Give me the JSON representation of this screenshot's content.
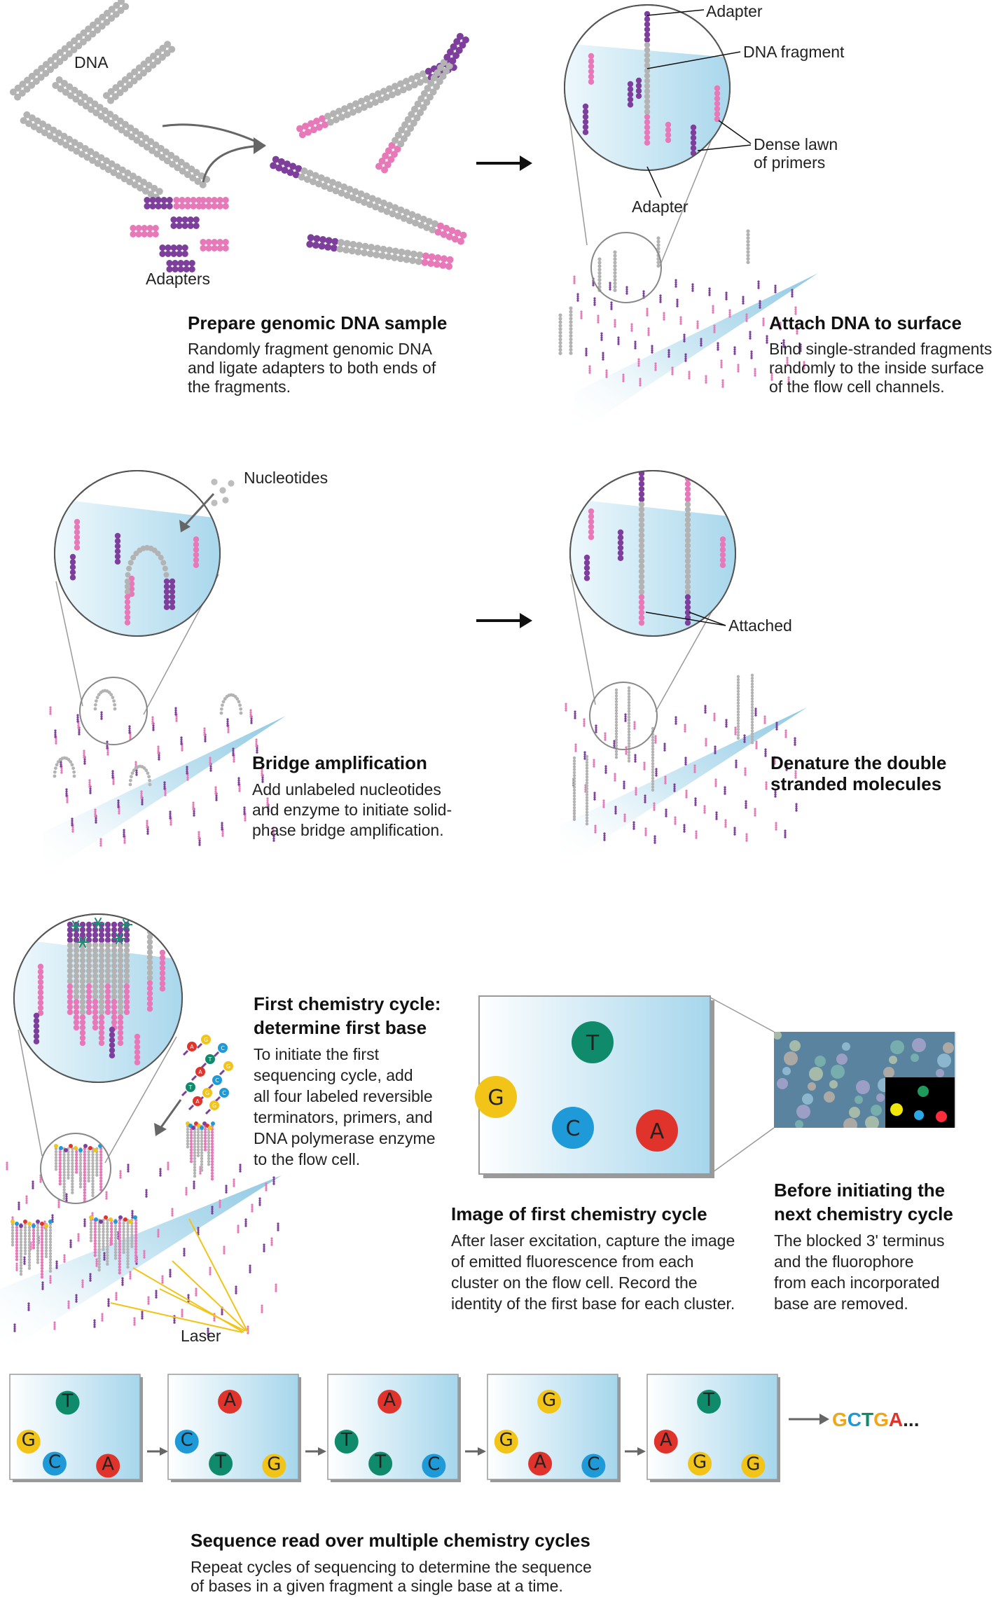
{
  "colors": {
    "gray": "#b3b3b3",
    "pink": "#e879b9",
    "purple": "#7d3f9b",
    "blue_light": "#d7eef8",
    "blue_dark": "#8fc9e3",
    "T": "#0f8a6a",
    "C": "#1f9ad8",
    "A": "#e0332b",
    "G": "#f1c417"
  },
  "step1": {
    "dna_label": "DNA",
    "adapters_label": "Adapters",
    "title": "Prepare genomic DNA sample",
    "desc": [
      "Randomly fragment genomic DNA",
      "and ligate adapters to both ends of",
      "the fragments."
    ]
  },
  "step2": {
    "labels": {
      "adapter_top": "Adapter",
      "fragment": "DNA fragment",
      "lawn_1": "Dense lawn",
      "lawn_2": "of primers",
      "adapter_bottom": "Adapter"
    },
    "title": "Attach DNA to surface",
    "desc": [
      "Bind single-stranded fragments",
      "randomly to the inside surface",
      "of the flow cell channels."
    ]
  },
  "step3": {
    "nucleotides_label": "Nucleotides",
    "title": "Bridge amplification",
    "desc": [
      "Add unlabeled nucleotides",
      "and enzyme to initiate solid-",
      "phase bridge amplification."
    ]
  },
  "step4": {
    "attached_label": "Attached",
    "title": [
      "Denature the double",
      "stranded molecules"
    ]
  },
  "step5": {
    "title": [
      "First chemistry cycle:",
      "determine first base"
    ],
    "desc": [
      "To initiate the first",
      "sequencing cycle, add",
      "all four labeled reversible",
      "terminators, primers, and",
      "DNA polymerase enzyme",
      "to the flow cell."
    ],
    "laser_label": "Laser",
    "nucleotide_letters": [
      "A",
      "G",
      "C",
      "T",
      "G",
      "A",
      "C",
      "T",
      "G",
      "C",
      "A",
      "G"
    ]
  },
  "step6": {
    "bases": [
      "T",
      "G",
      "C",
      "A"
    ],
    "title": "Image of first chemistry cycle",
    "desc": [
      "After laser excitation, capture the image",
      "of emitted fluorescence from each",
      "cluster on the flow cell. Record the",
      "identity of the first base for each cluster."
    ]
  },
  "step7": {
    "title": [
      "Before initiating the",
      "next chemistry cycle"
    ],
    "desc": [
      "The blocked 3' terminus",
      "and the fluorophore",
      "from each incorporated",
      "base are removed."
    ]
  },
  "step8": {
    "cycles": [
      [
        "T",
        "G",
        "C",
        "A"
      ],
      [
        "A",
        "C",
        "T",
        "G"
      ],
      [
        "A",
        "T",
        "T",
        "C"
      ],
      [
        "G",
        "G",
        "A",
        "C"
      ],
      [
        "T",
        "A",
        "G",
        "G"
      ]
    ],
    "sequence": [
      "G",
      "C",
      "T",
      "G",
      "A"
    ],
    "ellipsis": "...",
    "title": "Sequence read over multiple chemistry cycles",
    "desc": [
      "Repeat cycles of sequencing to determine the sequence",
      "of bases in a given fragment a single base at a time."
    ]
  }
}
